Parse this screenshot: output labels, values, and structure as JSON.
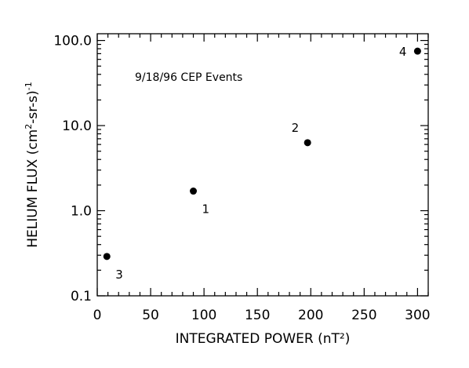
{
  "chart_data": {
    "type": "scatter",
    "title": "",
    "annotation": "9/18/96 CEP Events",
    "xlabel": "INTEGRATED POWER (nT²)",
    "ylabel": {
      "prefix": "HELIUM FLUX (cm",
      "sup1": "2",
      "mid": "-sr-s)",
      "sup2": "-1"
    },
    "xscale": "linear",
    "yscale": "log",
    "xlim": [
      0,
      310
    ],
    "ylim": [
      0.1,
      120
    ],
    "grid": false,
    "x_ticks": [
      0,
      50,
      100,
      150,
      200,
      250,
      300
    ],
    "x_tick_labels": [
      "0",
      "50",
      "100",
      "150",
      "200",
      "250",
      "300"
    ],
    "y_ticks": [
      0.1,
      1,
      10,
      100
    ],
    "y_tick_labels": [
      "0.1",
      "1.0",
      "10.0",
      "100.0"
    ],
    "points": [
      {
        "label": "1",
        "x": 90,
        "y": 1.7,
        "label_pos": "below-right"
      },
      {
        "label": "2",
        "x": 197,
        "y": 6.3,
        "label_pos": "above-left"
      },
      {
        "label": "3",
        "x": 9,
        "y": 0.29,
        "label_pos": "below-right"
      },
      {
        "label": "4",
        "x": 300,
        "y": 75,
        "label_pos": "left"
      }
    ]
  }
}
